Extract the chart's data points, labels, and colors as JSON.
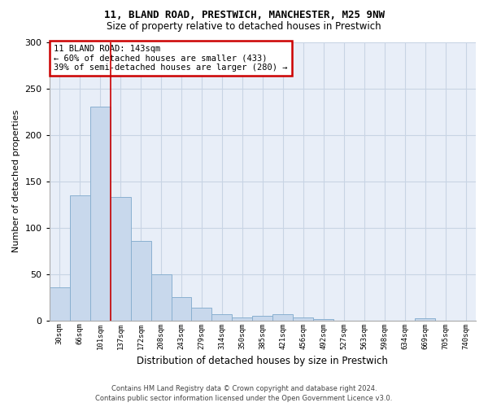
{
  "title1": "11, BLAND ROAD, PRESTWICH, MANCHESTER, M25 9NW",
  "title2": "Size of property relative to detached houses in Prestwich",
  "xlabel": "Distribution of detached houses by size in Prestwich",
  "ylabel": "Number of detached properties",
  "categories": [
    "30sqm",
    "66sqm",
    "101sqm",
    "137sqm",
    "172sqm",
    "208sqm",
    "243sqm",
    "279sqm",
    "314sqm",
    "350sqm",
    "385sqm",
    "421sqm",
    "456sqm",
    "492sqm",
    "527sqm",
    "563sqm",
    "598sqm",
    "634sqm",
    "669sqm",
    "705sqm",
    "740sqm"
  ],
  "values": [
    36,
    135,
    230,
    133,
    86,
    50,
    25,
    14,
    7,
    3,
    5,
    7,
    3,
    1,
    0,
    0,
    0,
    0,
    2,
    0,
    0
  ],
  "bar_color": "#c8d8ec",
  "bar_edge_color": "#8ab0d0",
  "grid_color": "#c8d4e4",
  "background_color": "#e8eef8",
  "annotation_text": "11 BLAND ROAD: 143sqm\n← 60% of detached houses are smaller (433)\n39% of semi-detached houses are larger (280) →",
  "annotation_box_color": "#ffffff",
  "annotation_border_color": "#cc0000",
  "vline_color": "#cc0000",
  "vline_x": 2.5,
  "ylim": [
    0,
    300
  ],
  "yticks": [
    0,
    50,
    100,
    150,
    200,
    250,
    300
  ],
  "footer1": "Contains HM Land Registry data © Crown copyright and database right 2024.",
  "footer2": "Contains public sector information licensed under the Open Government Licence v3.0."
}
